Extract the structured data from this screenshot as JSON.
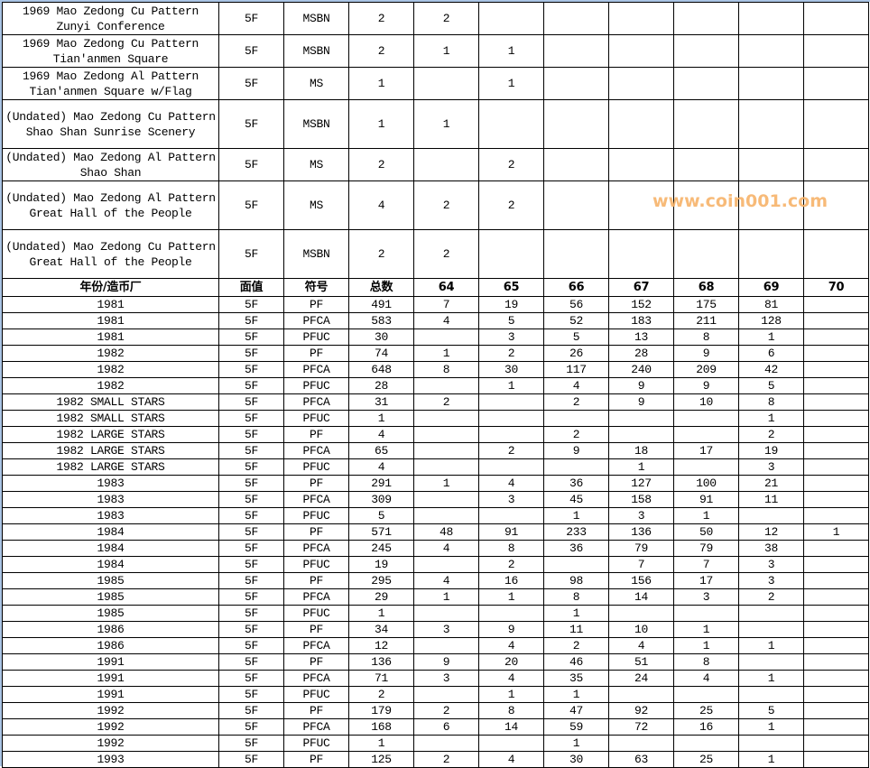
{
  "watermark": "www.coin001.com",
  "pattern_rows": [
    {
      "cells": [
        "1969 Mao Zedong Cu Pattern Zunyi Conference",
        "5F",
        "MSBN",
        "2",
        "2",
        "",
        "",
        "",
        "",
        "",
        ""
      ]
    },
    {
      "cells": [
        "1969 Mao Zedong Cu Pattern Tian'anmen Square",
        "5F",
        "MSBN",
        "2",
        "1",
        "1",
        "",
        "",
        "",
        "",
        ""
      ]
    },
    {
      "cells": [
        "1969 Mao Zedong Al Pattern Tian'anmen Square w/Flag",
        "5F",
        "MS",
        "1",
        "",
        "1",
        "",
        "",
        "",
        "",
        ""
      ]
    },
    {
      "cells": [
        "(Undated) Mao Zedong Cu Pattern Shao Shan Sunrise Scenery",
        "5F",
        "MSBN",
        "1",
        "1",
        "",
        "",
        "",
        "",
        "",
        ""
      ]
    },
    {
      "cells": [
        "(Undated) Mao Zedong Al Pattern Shao Shan",
        "5F",
        "MS",
        "2",
        "",
        "2",
        "",
        "",
        "",
        "",
        ""
      ]
    },
    {
      "cells": [
        "(Undated) Mao Zedong Al Pattern Great Hall of the People",
        "5F",
        "MS",
        "4",
        "2",
        "2",
        "",
        "",
        "",
        "",
        ""
      ]
    },
    {
      "cells": [
        "(Undated) Mao Zedong Cu Pattern Great Hall of the People",
        "5F",
        "MSBN",
        "2",
        "2",
        "",
        "",
        "",
        "",
        "",
        ""
      ]
    }
  ],
  "header": [
    "年份/造币厂",
    "面值",
    "符号",
    "总数",
    "64",
    "65",
    "66",
    "67",
    "68",
    "69",
    "70"
  ],
  "rows": [
    [
      "1981",
      "5F",
      "PF",
      "491",
      "7",
      "19",
      "56",
      "152",
      "175",
      "81",
      ""
    ],
    [
      "1981",
      "5F",
      "PFCA",
      "583",
      "4",
      "5",
      "52",
      "183",
      "211",
      "128",
      ""
    ],
    [
      "1981",
      "5F",
      "PFUC",
      "30",
      "",
      "3",
      "5",
      "13",
      "8",
      "1",
      ""
    ],
    [
      "1982",
      "5F",
      "PF",
      "74",
      "1",
      "2",
      "26",
      "28",
      "9",
      "6",
      ""
    ],
    [
      "1982",
      "5F",
      "PFCA",
      "648",
      "8",
      "30",
      "117",
      "240",
      "209",
      "42",
      ""
    ],
    [
      "1982",
      "5F",
      "PFUC",
      "28",
      "",
      "1",
      "4",
      "9",
      "9",
      "5",
      ""
    ],
    [
      "1982 SMALL STARS",
      "5F",
      "PFCA",
      "31",
      "2",
      "",
      "2",
      "9",
      "10",
      "8",
      ""
    ],
    [
      "1982 SMALL STARS",
      "5F",
      "PFUC",
      "1",
      "",
      "",
      "",
      "",
      "",
      "1",
      ""
    ],
    [
      "1982 LARGE STARS",
      "5F",
      "PF",
      "4",
      "",
      "",
      "2",
      "",
      "",
      "2",
      ""
    ],
    [
      "1982 LARGE STARS",
      "5F",
      "PFCA",
      "65",
      "",
      "2",
      "9",
      "18",
      "17",
      "19",
      ""
    ],
    [
      "1982 LARGE STARS",
      "5F",
      "PFUC",
      "4",
      "",
      "",
      "",
      "1",
      "",
      "3",
      ""
    ],
    [
      "1983",
      "5F",
      "PF",
      "291",
      "1",
      "4",
      "36",
      "127",
      "100",
      "21",
      ""
    ],
    [
      "1983",
      "5F",
      "PFCA",
      "309",
      "",
      "3",
      "45",
      "158",
      "91",
      "11",
      ""
    ],
    [
      "1983",
      "5F",
      "PFUC",
      "5",
      "",
      "",
      "1",
      "3",
      "1",
      "",
      ""
    ],
    [
      "1984",
      "5F",
      "PF",
      "571",
      "48",
      "91",
      "233",
      "136",
      "50",
      "12",
      "1"
    ],
    [
      "1984",
      "5F",
      "PFCA",
      "245",
      "4",
      "8",
      "36",
      "79",
      "79",
      "38",
      ""
    ],
    [
      "1984",
      "5F",
      "PFUC",
      "19",
      "",
      "2",
      "",
      "7",
      "7",
      "3",
      ""
    ],
    [
      "1985",
      "5F",
      "PF",
      "295",
      "4",
      "16",
      "98",
      "156",
      "17",
      "3",
      ""
    ],
    [
      "1985",
      "5F",
      "PFCA",
      "29",
      "1",
      "1",
      "8",
      "14",
      "3",
      "2",
      ""
    ],
    [
      "1985",
      "5F",
      "PFUC",
      "1",
      "",
      "",
      "1",
      "",
      "",
      "",
      ""
    ],
    [
      "1986",
      "5F",
      "PF",
      "34",
      "3",
      "9",
      "11",
      "10",
      "1",
      "",
      ""
    ],
    [
      "1986",
      "5F",
      "PFCA",
      "12",
      "",
      "4",
      "2",
      "4",
      "1",
      "1",
      ""
    ],
    [
      "1991",
      "5F",
      "PF",
      "136",
      "9",
      "20",
      "46",
      "51",
      "8",
      "",
      ""
    ],
    [
      "1991",
      "5F",
      "PFCA",
      "71",
      "3",
      "4",
      "35",
      "24",
      "4",
      "1",
      ""
    ],
    [
      "1991",
      "5F",
      "PFUC",
      "2",
      "",
      "1",
      "1",
      "",
      "",
      "",
      ""
    ],
    [
      "1992",
      "5F",
      "PF",
      "179",
      "2",
      "8",
      "47",
      "92",
      "25",
      "5",
      ""
    ],
    [
      "1992",
      "5F",
      "PFCA",
      "168",
      "6",
      "14",
      "59",
      "72",
      "16",
      "1",
      ""
    ],
    [
      "1992",
      "5F",
      "PFUC",
      "1",
      "",
      "",
      "1",
      "",
      "",
      "",
      ""
    ],
    [
      "1993",
      "5F",
      "PF",
      "125",
      "2",
      "4",
      "30",
      "63",
      "25",
      "1",
      ""
    ]
  ]
}
